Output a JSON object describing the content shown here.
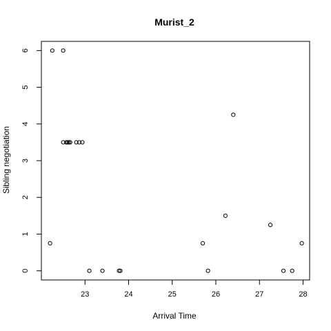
{
  "chart_data": {
    "type": "scatter",
    "title": "Murist_2",
    "xlabel": "Arrival Time",
    "ylabel": "Sibling negotiation",
    "xlim": [
      22.0,
      28.15
    ],
    "ylim": [
      -0.25,
      6.25
    ],
    "xticks": [
      23,
      24,
      25,
      26,
      27,
      28
    ],
    "yticks": [
      0,
      1,
      2,
      3,
      4,
      5,
      6
    ],
    "grid": false,
    "points": [
      {
        "x": 22.2,
        "y": 0.75
      },
      {
        "x": 22.25,
        "y": 6.0
      },
      {
        "x": 22.5,
        "y": 6.0
      },
      {
        "x": 22.5,
        "y": 3.5
      },
      {
        "x": 22.57,
        "y": 3.5
      },
      {
        "x": 22.6,
        "y": 3.5
      },
      {
        "x": 22.63,
        "y": 3.5
      },
      {
        "x": 22.66,
        "y": 3.5
      },
      {
        "x": 22.8,
        "y": 3.5
      },
      {
        "x": 22.87,
        "y": 3.5
      },
      {
        "x": 22.94,
        "y": 3.5
      },
      {
        "x": 23.1,
        "y": 0.0
      },
      {
        "x": 23.4,
        "y": 0.0
      },
      {
        "x": 23.78,
        "y": 0.0
      },
      {
        "x": 23.81,
        "y": 0.0
      },
      {
        "x": 25.7,
        "y": 0.75
      },
      {
        "x": 25.82,
        "y": 0.0
      },
      {
        "x": 26.22,
        "y": 1.5
      },
      {
        "x": 26.4,
        "y": 4.25
      },
      {
        "x": 27.25,
        "y": 1.25
      },
      {
        "x": 27.55,
        "y": 0.0
      },
      {
        "x": 27.75,
        "y": 0.0
      },
      {
        "x": 27.97,
        "y": 0.75
      }
    ]
  }
}
